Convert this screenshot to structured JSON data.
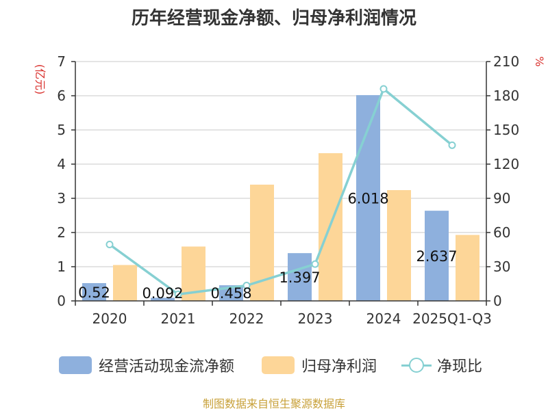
{
  "chart_data": {
    "type": "bar",
    "title": "历年经营现金净额、归母净利润情况",
    "categories": [
      "2020",
      "2021",
      "2022",
      "2023",
      "2024",
      "2025Q1-Q3"
    ],
    "left_unit": "(亿元)",
    "right_unit": "%",
    "y_left": {
      "min": 0,
      "max": 7,
      "ticks": [
        "0",
        "1",
        "2",
        "3",
        "4",
        "5",
        "6",
        "7"
      ]
    },
    "y_right": {
      "min": 0,
      "max": 210,
      "ticks": [
        "0",
        "30",
        "60",
        "90",
        "120",
        "150",
        "180",
        "210"
      ]
    },
    "grid": true,
    "legend_position": "bottom",
    "series": [
      {
        "name": "经营活动现金流净额",
        "type": "bar",
        "axis": "left",
        "color": "#8eb0dd",
        "values": [
          0.52,
          0.092,
          0.458,
          1.397,
          6.018,
          2.637
        ],
        "labels": [
          "0.52",
          "0.092",
          "0.458",
          "1.397",
          "6.018",
          "2.637"
        ]
      },
      {
        "name": "归母净利润",
        "type": "bar",
        "axis": "left",
        "color": "#fdd698",
        "values": [
          1.05,
          1.59,
          3.4,
          4.32,
          3.24,
          1.93
        ]
      },
      {
        "name": "净现比",
        "type": "line",
        "axis": "right",
        "color": "#86d0d2",
        "values": [
          49.5,
          5.8,
          13.5,
          32.3,
          186,
          136.6
        ]
      }
    ]
  },
  "source_note": "制图数据来自恒生聚源数据库"
}
